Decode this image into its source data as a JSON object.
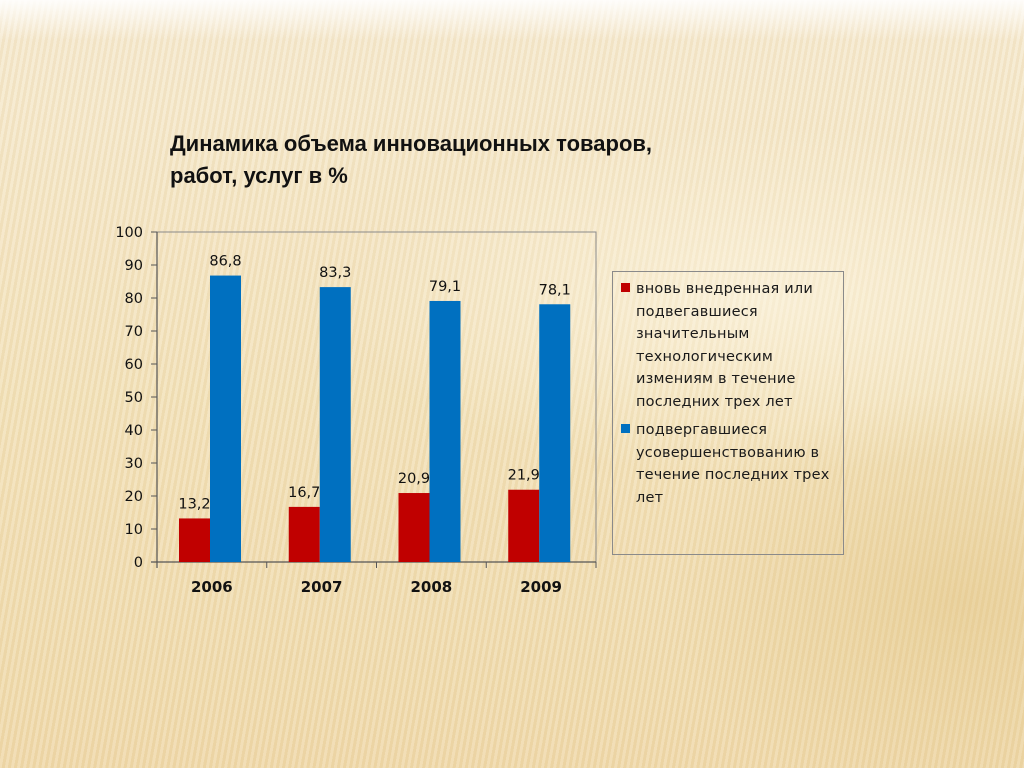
{
  "title_lines": [
    "Динамика объема инновационных товаров,",
    "работ, услуг  в %"
  ],
  "colors": {
    "series1": "#c00000",
    "series2": "#0070c0"
  },
  "chart_data": {
    "type": "bar",
    "categories": [
      "2006",
      "2007",
      "2008",
      "2009"
    ],
    "series": [
      {
        "name": "вновь внедренная или подвегавшиеся значительным технологическим измениям в течение последних трех лет",
        "values": [
          13.2,
          16.7,
          20.9,
          21.9
        ],
        "labels": [
          "13,2",
          "16,7",
          "20,9",
          "21,9"
        ]
      },
      {
        "name": "подвергавшиеся усовершенствованию в течение последних трех лет",
        "values": [
          86.8,
          83.3,
          79.1,
          78.1
        ],
        "labels": [
          "86,8",
          "83,3",
          "79,1",
          "78,1"
        ]
      }
    ],
    "ylim": [
      0,
      100
    ],
    "yticks": [
      0,
      10,
      20,
      30,
      40,
      50,
      60,
      70,
      80,
      90,
      100
    ],
    "grid": false,
    "legend": "right"
  }
}
